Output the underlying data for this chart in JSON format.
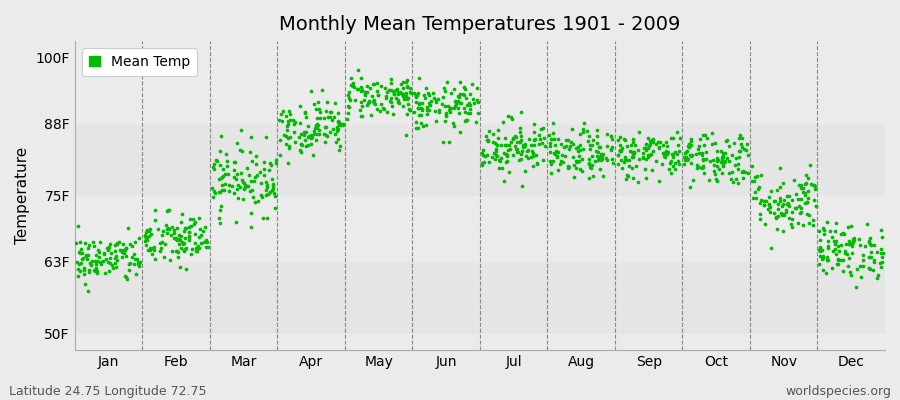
{
  "title": "Monthly Mean Temperatures 1901 - 2009",
  "ylabel": "Temperature",
  "ytick_labels": [
    "50F",
    "63F",
    "75F",
    "88F",
    "100F"
  ],
  "ytick_values": [
    50,
    63,
    75,
    88,
    100
  ],
  "ylim": [
    47,
    103
  ],
  "xlim": [
    0,
    12
  ],
  "months": [
    "Jan",
    "Feb",
    "Mar",
    "Apr",
    "May",
    "Jun",
    "Jul",
    "Aug",
    "Sep",
    "Oct",
    "Nov",
    "Dec"
  ],
  "month_centers": [
    0.5,
    1.5,
    2.5,
    3.5,
    4.5,
    5.5,
    6.5,
    7.5,
    8.5,
    9.5,
    10.5,
    11.5
  ],
  "month_dividers": [
    1,
    2,
    3,
    4,
    5,
    6,
    7,
    8,
    9,
    10,
    11
  ],
  "mean_temps_F": [
    63.5,
    67.0,
    78.0,
    87.5,
    93.0,
    91.0,
    84.0,
    82.5,
    82.5,
    82.0,
    74.0,
    65.0
  ],
  "std_temps_F": [
    2.2,
    2.5,
    3.2,
    2.5,
    2.0,
    2.2,
    2.5,
    2.2,
    2.2,
    2.5,
    3.0,
    2.5
  ],
  "n_years": 109,
  "dot_color": "#00bb00",
  "dot_size": 7,
  "background_color": "#ebebeb",
  "alt_band_color": "#e0e0e0",
  "grid_color": "#888888",
  "title_fontsize": 14,
  "axis_fontsize": 11,
  "tick_fontsize": 10,
  "legend_label": "Mean Temp",
  "footer_left": "Latitude 24.75 Longitude 72.75",
  "footer_right": "worldspecies.org",
  "footer_fontsize": 9,
  "random_seed": 42
}
